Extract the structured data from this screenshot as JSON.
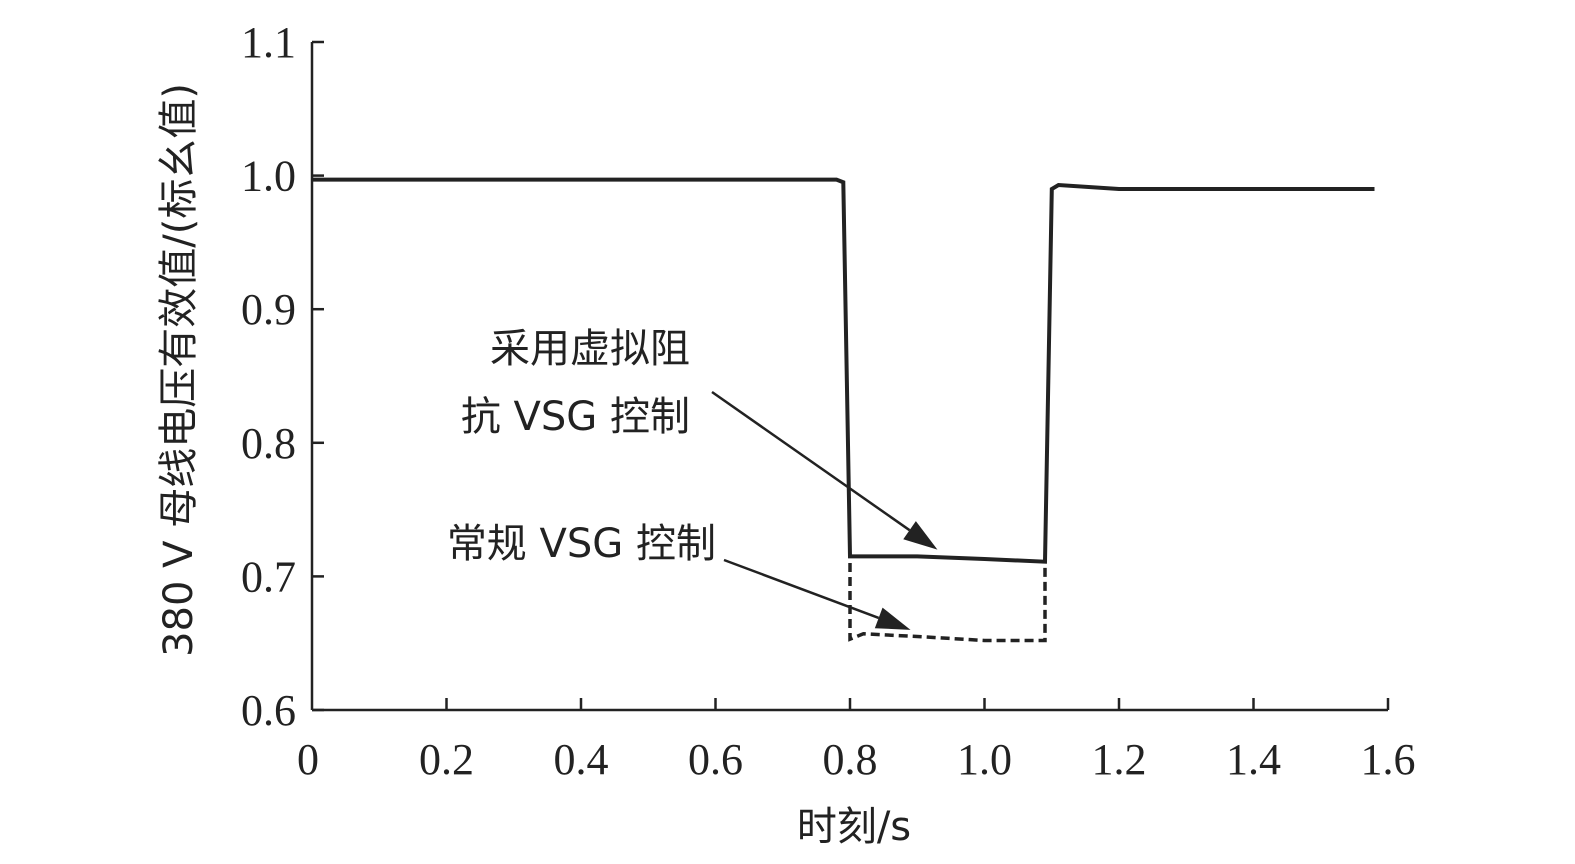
{
  "chart_data": {
    "type": "line",
    "title": "",
    "xlabel": "时刻/s",
    "ylabel": "380 V 母线电压有效值/(标幺值)",
    "xlim": [
      0,
      1.6
    ],
    "ylim": [
      0.6,
      1.1
    ],
    "x_ticks": [
      "0",
      "0.2",
      "0.4",
      "0.6",
      "0.8",
      "1.0",
      "1.2",
      "1.4",
      "1.6"
    ],
    "y_ticks": [
      "0.6",
      "0.7",
      "0.8",
      "0.9",
      "1.0",
      "1.1"
    ],
    "grid": false,
    "series": [
      {
        "name": "采用虚拟阻抗 VSG 控制",
        "style": "solid",
        "color": "#222222",
        "x": [
          0,
          0.78,
          0.79,
          0.8,
          0.9,
          1.0,
          1.09,
          1.1,
          1.11,
          1.2,
          1.4,
          1.58
        ],
        "y": [
          0.997,
          0.997,
          0.995,
          0.715,
          0.715,
          0.713,
          0.711,
          0.99,
          0.993,
          0.99,
          0.99,
          0.99
        ]
      },
      {
        "name": "常规 VSG 控制",
        "style": "dashed",
        "color": "#222222",
        "x": [
          0.8,
          0.8,
          0.82,
          0.9,
          1.0,
          1.09,
          1.09
        ],
        "y": [
          0.71,
          0.653,
          0.657,
          0.655,
          0.652,
          0.652,
          0.71
        ]
      }
    ],
    "annotations": [
      {
        "lines": [
          "采用虚拟阻",
          "抗 VSG 控制"
        ],
        "arrow_to": [
          0.93,
          0.72
        ]
      },
      {
        "lines": [
          "常规 VSG 控制"
        ],
        "arrow_to": [
          0.89,
          0.66
        ]
      }
    ]
  }
}
